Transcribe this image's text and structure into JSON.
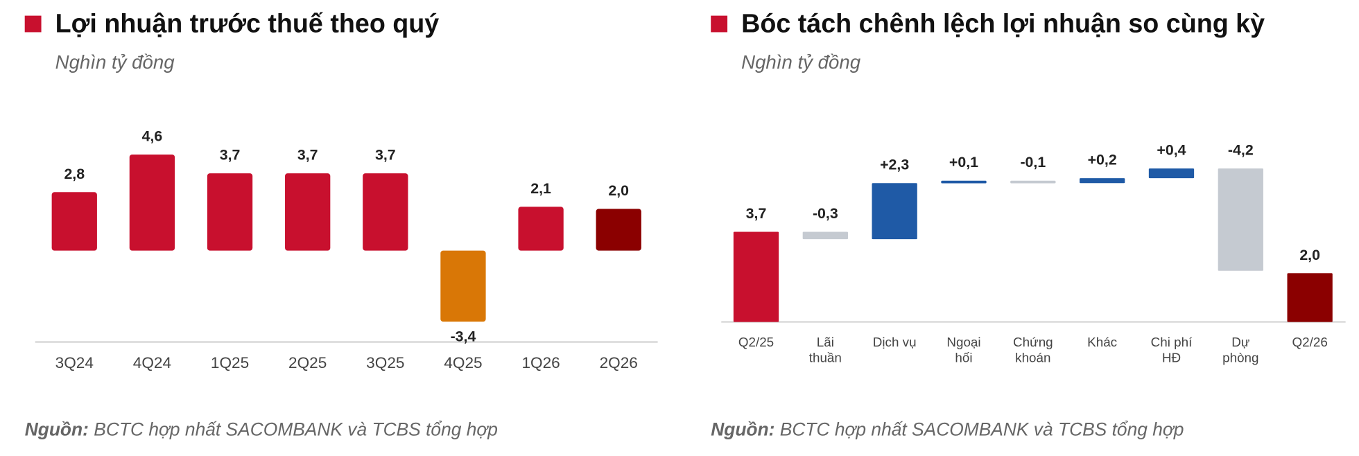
{
  "chart_data": [
    {
      "type": "bar",
      "title": "Lợi nhuận trước thuế theo quý",
      "subtitle": "Nghìn tỷ đồng",
      "categories": [
        "3Q24",
        "4Q24",
        "1Q25",
        "2Q25",
        "3Q25",
        "4Q25",
        "1Q26",
        "2Q26"
      ],
      "values": [
        2.8,
        4.6,
        3.7,
        3.7,
        3.7,
        -3.4,
        2.1,
        2.0
      ],
      "value_labels": [
        "2,8",
        "4,6",
        "3,7",
        "3,7",
        "3,7",
        "-3,4",
        "2,1",
        "2,0"
      ],
      "colors": [
        "#c8102e",
        "#c8102e",
        "#c8102e",
        "#c8102e",
        "#c8102e",
        "#d97706",
        "#c8102e",
        "#8b0000"
      ],
      "source_label": "Nguồn:",
      "source": "BCTC hợp nhất SACOMBANK và TCBS tổng hợp"
    },
    {
      "type": "waterfall",
      "title": "Bóc tách chênh lệch lợi nhuận so cùng kỳ",
      "subtitle": "Nghìn tỷ đồng",
      "categories": [
        "Q2/25",
        "Lãi thuần",
        "Dịch vụ",
        "Ngoại hối",
        "Chứng khoán",
        "Khác",
        "Chi phí HĐ",
        "Dự phòng",
        "Q2/26"
      ],
      "values": [
        3.7,
        -0.3,
        2.3,
        0.1,
        -0.1,
        0.2,
        0.4,
        -4.2,
        2.0
      ],
      "value_labels": [
        "3,7",
        "-0,3",
        "+2,3",
        "+0,1",
        "-0,1",
        "+0,2",
        "+0,4",
        "-4,2",
        "2,0"
      ],
      "measure": [
        "absolute",
        "relative",
        "relative",
        "relative",
        "relative",
        "relative",
        "relative",
        "relative",
        "absolute"
      ],
      "colors": [
        "#c8102e",
        "#c5cad1",
        "#1f5aa6",
        "#1f5aa6",
        "#c5cad1",
        "#1f5aa6",
        "#1f5aa6",
        "#c5cad1",
        "#8b0000"
      ],
      "source_label": "Nguồn:",
      "source": "BCTC hợp nhất SACOMBANK và TCBS tổng hợp"
    }
  ]
}
